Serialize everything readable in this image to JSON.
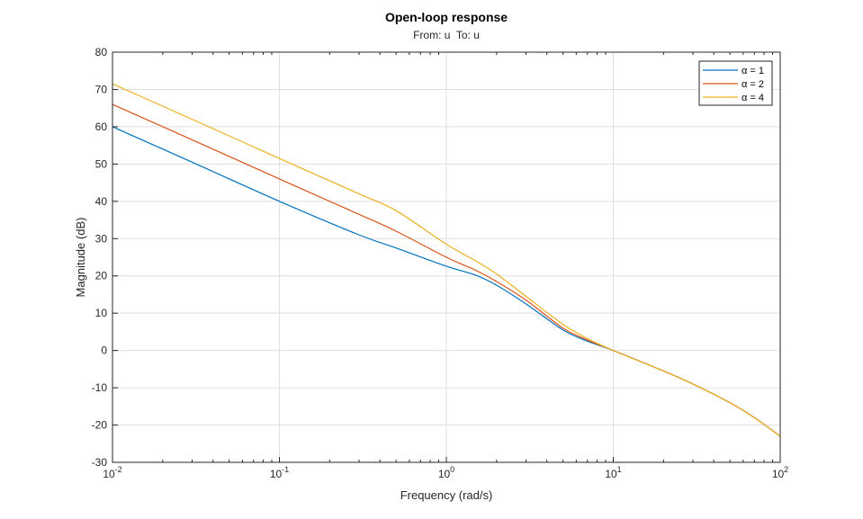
{
  "chart_data": {
    "type": "line",
    "title": "Open-loop response",
    "subtitle": "From: u  To: u",
    "xlabel": "Frequency (rad/s)",
    "ylabel": "Magnitude (dB)",
    "xscale": "log",
    "xlim": [
      0.01,
      100
    ],
    "ylim": [
      -30,
      80
    ],
    "grid": true,
    "legend_position": "top-right",
    "x_ticks": [
      0.01,
      0.1,
      1,
      10,
      100
    ],
    "x_tick_labels": [
      {
        "base": "10",
        "exp": "-2"
      },
      {
        "base": "10",
        "exp": "-1"
      },
      {
        "base": "10",
        "exp": "0"
      },
      {
        "base": "10",
        "exp": "1"
      },
      {
        "base": "10",
        "exp": "2"
      }
    ],
    "y_ticks": [
      80,
      70,
      60,
      50,
      40,
      30,
      20,
      10,
      0,
      -10,
      -20,
      -30
    ],
    "y_tick_labels": [
      "80",
      "70",
      "60",
      "50",
      "40",
      "30",
      "20",
      "10",
      "0",
      "-10",
      "-20",
      "-30"
    ],
    "x": [
      0.01,
      0.03,
      0.1,
      0.3,
      0.5,
      1,
      1.5,
      2,
      3,
      5,
      7,
      10,
      20,
      30,
      50,
      70,
      100
    ],
    "series": [
      {
        "name": "α = 1",
        "color": "#0072BD",
        "values": [
          60,
          50.5,
          40,
          31,
          27.5,
          22.6,
          20.2,
          17.5,
          12.5,
          5.5,
          2.5,
          0,
          -5.5,
          -9,
          -14,
          -18,
          -23
        ]
      },
      {
        "name": "α = 2",
        "color": "#D95319",
        "values": [
          66,
          56.5,
          46,
          36.5,
          32,
          25,
          21.5,
          18.5,
          13.5,
          6,
          2.8,
          0,
          -5.5,
          -9,
          -14,
          -18,
          -23
        ]
      },
      {
        "name": "α = 4",
        "color": "#EDB120",
        "values": [
          71.5,
          62,
          51.5,
          42,
          37.5,
          28.5,
          24,
          20.5,
          14.5,
          7,
          3.2,
          0,
          -5.5,
          -9,
          -14,
          -18,
          -23
        ]
      }
    ]
  }
}
